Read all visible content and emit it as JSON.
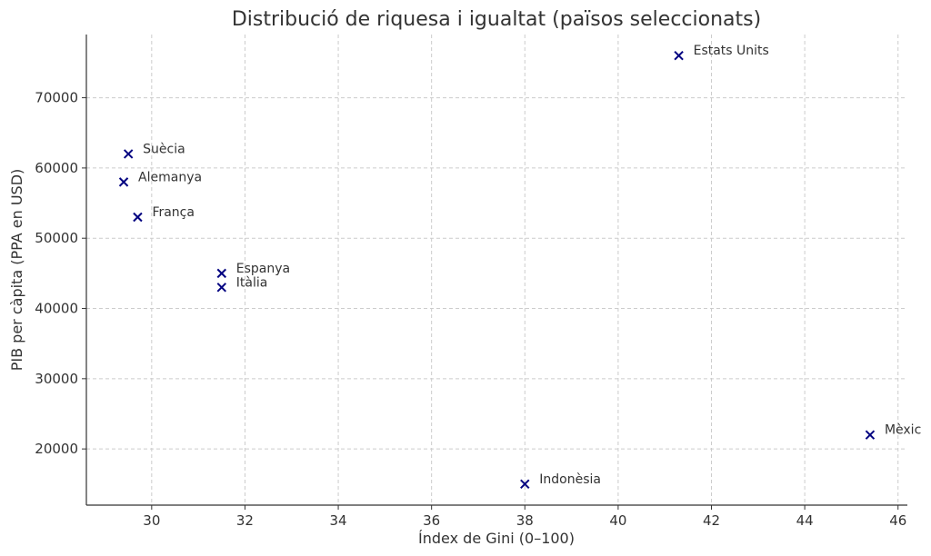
{
  "chart_data": {
    "type": "scatter",
    "title": "Distribució de riquesa i igualtat (països seleccionats)",
    "xlabel": "Índex de Gini (0–100)",
    "ylabel": "PIB per càpita (PPA en USD)",
    "xlim": [
      28.6,
      46.2
    ],
    "ylim": [
      12000,
      79000
    ],
    "xticks": [
      30,
      32,
      34,
      36,
      38,
      40,
      42,
      44,
      46
    ],
    "yticks": [
      20000,
      30000,
      40000,
      50000,
      60000,
      70000
    ],
    "grid": true,
    "marker_color": "#000080",
    "points": [
      {
        "label": "Estats Units",
        "x": 41.3,
        "y": 76000
      },
      {
        "label": "Suècia",
        "x": 29.5,
        "y": 62000
      },
      {
        "label": "Alemanya",
        "x": 29.4,
        "y": 58000
      },
      {
        "label": "França",
        "x": 29.7,
        "y": 53000
      },
      {
        "label": "Espanya",
        "x": 31.5,
        "y": 45000
      },
      {
        "label": "Itàlia",
        "x": 31.5,
        "y": 43000
      },
      {
        "label": "Mèxic",
        "x": 45.4,
        "y": 22000
      },
      {
        "label": "Indonèsia",
        "x": 38.0,
        "y": 15000
      }
    ]
  }
}
